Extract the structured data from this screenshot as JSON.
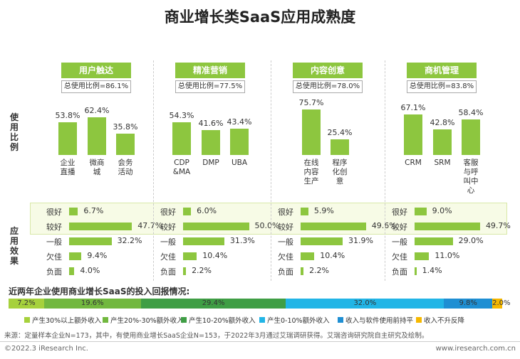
{
  "title": "商业增长类SaaS应用成熟度",
  "usage_axis_label": "使用比例",
  "effect_axis_label": "应用效果",
  "rating_categories": [
    "很好",
    "较好",
    "一般",
    "欠佳",
    "负面"
  ],
  "groups": [
    {
      "name": "用户触达",
      "total": "总使用比例=86.1%",
      "categories": [
        "企业直播",
        "微商城",
        "会务活动"
      ],
      "values": [
        53.8,
        62.4,
        35.8
      ],
      "value_labels": [
        "53.8%",
        "62.4%",
        "35.8%"
      ],
      "ratings": [
        6.7,
        47.7,
        32.2,
        9.4,
        4.0
      ],
      "rating_labels": [
        "6.7%",
        "47.7%",
        "32.2%",
        "9.4%",
        "4.0%"
      ]
    },
    {
      "name": "精准营销",
      "total": "总使用比例=77.5%",
      "categories": [
        "CDP &MA",
        "DMP",
        "UBA"
      ],
      "values": [
        54.3,
        41.6,
        43.4
      ],
      "value_labels": [
        "54.3%",
        "41.6%",
        "43.4%"
      ],
      "ratings": [
        6.0,
        50.0,
        31.3,
        10.4,
        2.2
      ],
      "rating_labels": [
        "6.0%",
        "50.0%",
        "31.3%",
        "10.4%",
        "2.2%"
      ]
    },
    {
      "name": "内容创意",
      "total": "总使用比例=78.0%",
      "categories": [
        "在线内容生产",
        "程序化创意"
      ],
      "values": [
        75.7,
        25.4
      ],
      "value_labels": [
        "75.7%",
        "25.4%"
      ],
      "ratings": [
        5.9,
        49.6,
        31.9,
        10.4,
        2.2
      ],
      "rating_labels": [
        "5.9%",
        "49.6%",
        "31.9%",
        "10.4%",
        "2.2%"
      ]
    },
    {
      "name": "商机管理",
      "total": "总使用比例=83.8%",
      "categories": [
        "CRM",
        "SRM",
        "客服与呼叫中心"
      ],
      "values": [
        67.1,
        42.8,
        58.4
      ],
      "value_labels": [
        "67.1%",
        "42.8%",
        "58.4%"
      ],
      "ratings": [
        9.0,
        49.7,
        29.0,
        11.0,
        1.4
      ],
      "rating_labels": [
        "9.0%",
        "49.7%",
        "29.0%",
        "11.0%",
        "1.4%"
      ]
    }
  ],
  "roi": {
    "title": "近两年企业使用商业增长SaaS的投入回报情况:",
    "series": [
      {
        "name": "产生30%以上额外收入",
        "color": "#a6d13c",
        "value": 7.2,
        "value_label": "7.2%"
      },
      {
        "name": "产生20%-30%额外收入",
        "color": "#72b83f",
        "value": 19.6,
        "value_label": "19.6%"
      },
      {
        "name": "产生10-20%额外收入",
        "color": "#3f9e45",
        "value": 29.4,
        "value_label": "29.4%"
      },
      {
        "name": "产生0-10%额外收入",
        "color": "#22b5e6",
        "value": 32.0,
        "value_label": "32.0%"
      },
      {
        "name": "收入与软件使用前持平",
        "color": "#1f8fd3",
        "value": 9.8,
        "value_label": "9.8%"
      },
      {
        "name": "收入不升反降",
        "color": "#f6b800",
        "value": 2.0,
        "value_label": "2.0%"
      }
    ]
  },
  "source": "来源：定量样本企业N=173，其中，有使用商业增长SaaS企业N=153，于2022年3月通过艾瑞调研获得。艾瑞咨询研究院自主研究及绘制。",
  "copyright": "©2022.3 iResearch Inc.",
  "url": "www.iresearch.com.cn"
}
